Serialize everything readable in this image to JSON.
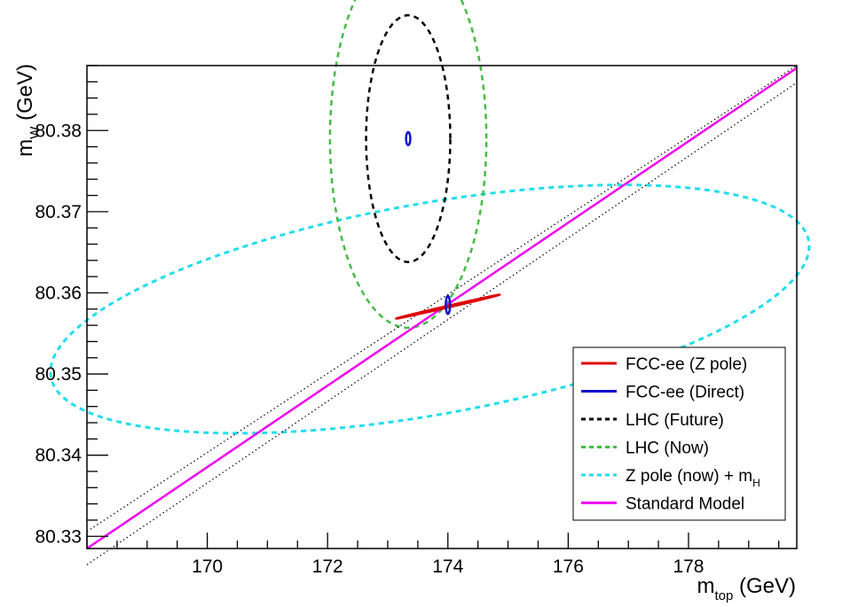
{
  "chart_data": {
    "type": "line",
    "title": "",
    "xlabel": {
      "main": "m",
      "sub": "top",
      "unit": " (GeV)"
    },
    "ylabel": {
      "main": "m",
      "sub": "W",
      "unit": " (GeV)"
    },
    "xlim": [
      168.0,
      179.8
    ],
    "ylim": [
      80.3285,
      80.388
    ],
    "x_ticks": [
      170,
      172,
      174,
      176,
      178
    ],
    "x_tick_labels": [
      "170",
      "172",
      "174",
      "176",
      "178"
    ],
    "y_ticks": [
      80.33,
      80.34,
      80.35,
      80.36,
      80.37,
      80.38
    ],
    "y_tick_labels": [
      "80.33",
      "80.34",
      "80.35",
      "80.36",
      "80.37",
      "80.38"
    ],
    "grid": false,
    "legend_position": "bottom-right",
    "series": [
      {
        "name": "FCC-ee (Z pole)",
        "label_main": "FCC-ee (Z pole)",
        "label_sub": "",
        "kind": "ellipse",
        "style": "solid",
        "color": "#e00000",
        "width": 2.5,
        "center": [
          174.0,
          80.3583
        ],
        "axes": [
          0.88,
          0.0001
        ],
        "angle": 13.0
      },
      {
        "name": "FCC-ee (Direct)",
        "label_main": "FCC-ee (Direct)",
        "label_sub": "",
        "kind": "ellipse",
        "style": "solid",
        "color": "#1010d0",
        "width": 2.5,
        "ellipses": [
          {
            "center": [
              173.34,
              80.379
            ],
            "axes": [
              0.035,
              0.0008
            ],
            "angle": 0
          },
          {
            "center": [
              174.0,
              80.3585
            ],
            "axes": [
              0.035,
              0.0011
            ],
            "angle": 0
          }
        ]
      },
      {
        "name": "LHC (Future)",
        "label_main": "LHC (Future)",
        "label_sub": "",
        "kind": "ellipse",
        "style": "dashed",
        "color": "#000000",
        "width": 2.5,
        "center": [
          173.34,
          80.379
        ],
        "axes": [
          0.7,
          0.0152
        ],
        "angle": 0
      },
      {
        "name": "LHC (Now)",
        "label_main": "LHC (Now)",
        "label_sub": "",
        "kind": "ellipse",
        "style": "dashed",
        "color": "#44bb44",
        "width": 2.5,
        "center": [
          173.34,
          80.379
        ],
        "axes": [
          1.3,
          0.0233
        ],
        "angle": 0
      },
      {
        "name": "Z pole (now) + m_H",
        "label_main": "Z pole (now) + m",
        "label_sub": "H",
        "kind": "ellipse",
        "style": "dashed",
        "color": "#22ddee",
        "width": 3,
        "center": [
          173.7,
          80.358
        ],
        "axes": [
          6.4,
          0.013
        ],
        "angle": 10.2
      },
      {
        "name": "Standard Model",
        "label_main": "Standard Model",
        "label_sub": "",
        "kind": "line",
        "style": "solid",
        "color": "#ee00ee",
        "width": 2.5,
        "x": [
          168.0,
          179.8
        ],
        "y": [
          80.3285,
          80.3877
        ]
      },
      {
        "name": "",
        "label_main": "",
        "label_sub": "",
        "kind": "line",
        "style": "dotted",
        "color": "#000000",
        "width": 1.2,
        "in_legend": false,
        "x": [
          168.0,
          179.8
        ],
        "y": [
          80.3306,
          80.388
        ]
      },
      {
        "name": "",
        "label_main": "",
        "label_sub": "",
        "kind": "line",
        "style": "dotted",
        "color": "#000000",
        "width": 1.2,
        "in_legend": false,
        "x": [
          168.0,
          179.8
        ],
        "y": [
          80.3265,
          80.3859
        ]
      }
    ]
  }
}
